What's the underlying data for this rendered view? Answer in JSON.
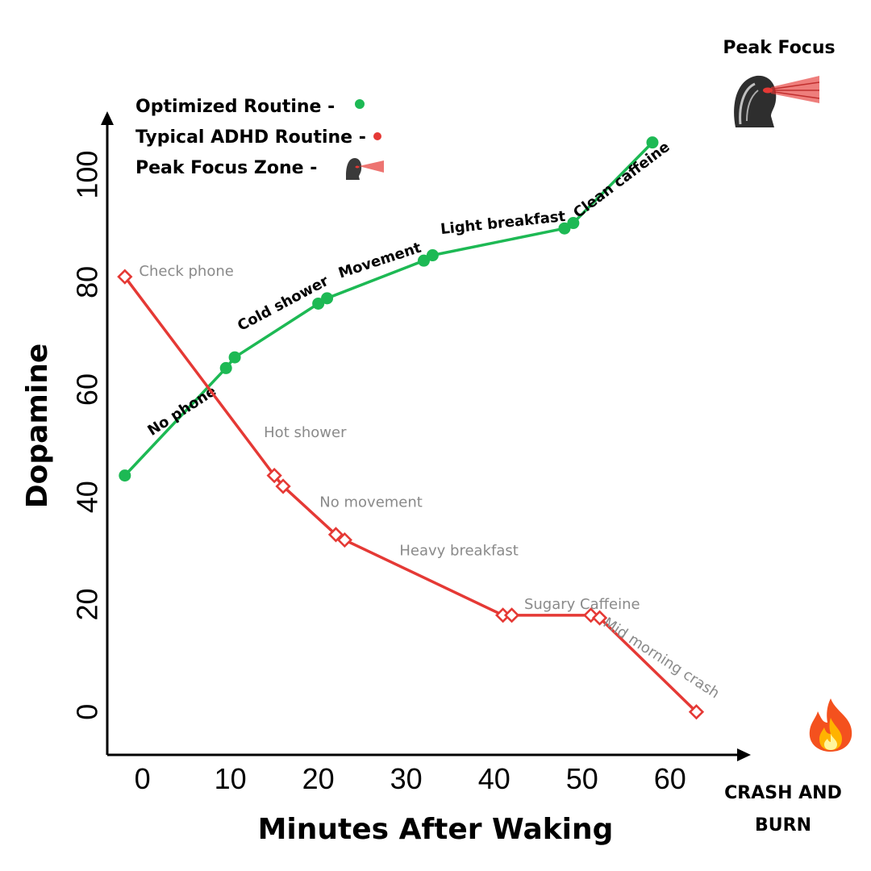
{
  "chart_data": {
    "type": "line",
    "xlabel": "Minutes After Waking",
    "ylabel": "Dopamine",
    "xlim": [
      -4,
      68
    ],
    "ylim": [
      -8,
      110
    ],
    "x_ticks": [
      0,
      10,
      20,
      30,
      40,
      50,
      60
    ],
    "y_ticks": [
      0,
      20,
      40,
      60,
      80,
      100
    ],
    "grid": false,
    "legend_position": "top-left",
    "legend": [
      {
        "label": "Optimized Routine -",
        "marker": "green-dot"
      },
      {
        "label": "Typical ADHD Routine -",
        "marker": "red-dot"
      },
      {
        "label": "Peak Focus Zone -",
        "marker": "peak-focus-icon"
      }
    ],
    "peak_label": "Peak Focus",
    "crash_label": [
      "CRASH AND",
      "BURN"
    ],
    "series": [
      {
        "name": "Optimized Routine",
        "color": "#1db954",
        "marker": "filled-circle",
        "points": [
          [
            -2,
            44
          ],
          [
            9.5,
            64
          ],
          [
            10.5,
            66
          ],
          [
            20,
            76
          ],
          [
            21,
            77
          ],
          [
            32,
            84
          ],
          [
            33,
            85
          ],
          [
            48,
            90
          ],
          [
            49,
            91
          ],
          [
            58,
            106
          ]
        ],
        "annotations": [
          {
            "text": "No phone",
            "x": 4.5,
            "y": 56,
            "angle": -33
          },
          {
            "text": "Cold shower",
            "x": 16,
            "y": 76,
            "angle": -28
          },
          {
            "text": "Movement",
            "x": 27,
            "y": 84,
            "angle": -18
          },
          {
            "text": "Light breakfast",
            "x": 41,
            "y": 91,
            "angle": -6
          },
          {
            "text": "Clean caffeine",
            "x": 54.5,
            "y": 99,
            "angle": -37
          }
        ]
      },
      {
        "name": "Typical ADHD Routine",
        "color": "#e53935",
        "marker": "hollow-diamond",
        "points": [
          [
            -2,
            81
          ],
          [
            15,
            44
          ],
          [
            16,
            42
          ],
          [
            22,
            33
          ],
          [
            23,
            32
          ],
          [
            41,
            18
          ],
          [
            42,
            18
          ],
          [
            51,
            18
          ],
          [
            52,
            17.5
          ],
          [
            63,
            0
          ]
        ],
        "annotations": [
          {
            "text": "Check phone",
            "x": 5,
            "y": 82,
            "angle": 0
          },
          {
            "text": "Hot shower",
            "x": 18.5,
            "y": 52,
            "angle": 0
          },
          {
            "text": "No movement",
            "x": 26,
            "y": 39,
            "angle": 0
          },
          {
            "text": "Heavy breakfast",
            "x": 36,
            "y": 30,
            "angle": 0
          },
          {
            "text": "Sugary Caffeine",
            "x": 50,
            "y": 20,
            "angle": 0
          },
          {
            "text": "Mid morning crash",
            "x": 59,
            "y": 10,
            "angle": 33
          }
        ]
      }
    ]
  },
  "icons": {
    "legend_peak_icon": "peak-focus-icon",
    "peak_focus_image": "peak-focus-icon",
    "crash_icon": "fire-icon"
  }
}
